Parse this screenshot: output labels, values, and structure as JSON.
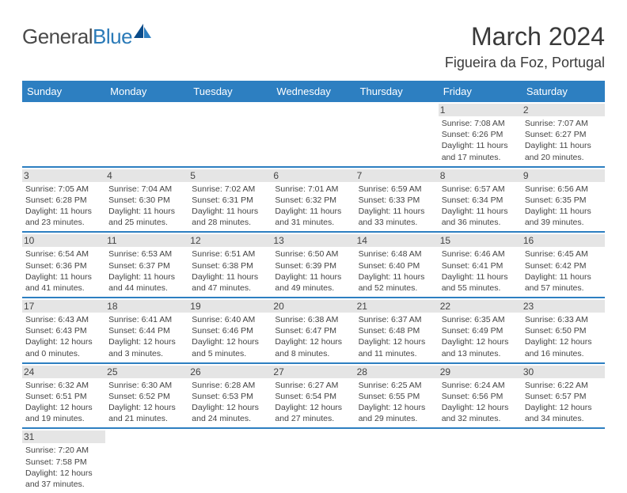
{
  "logo": {
    "general": "General",
    "blue": "Blue"
  },
  "title": "March 2024",
  "location": "Figueira da Foz, Portugal",
  "weekdays": [
    "Sunday",
    "Monday",
    "Tuesday",
    "Wednesday",
    "Thursday",
    "Friday",
    "Saturday"
  ],
  "colors": {
    "header_bg": "#2d7fc1",
    "daynum_bg": "#e5e5e5",
    "text": "#444444",
    "title": "#3a3a3a",
    "logo_gray": "#4a4a4a",
    "logo_blue": "#2a7ab8"
  },
  "weeks": [
    [
      {
        "n": "",
        "lines": []
      },
      {
        "n": "",
        "lines": []
      },
      {
        "n": "",
        "lines": []
      },
      {
        "n": "",
        "lines": []
      },
      {
        "n": "",
        "lines": []
      },
      {
        "n": "1",
        "lines": [
          "Sunrise: 7:08 AM",
          "Sunset: 6:26 PM",
          "Daylight: 11 hours",
          "and 17 minutes."
        ]
      },
      {
        "n": "2",
        "lines": [
          "Sunrise: 7:07 AM",
          "Sunset: 6:27 PM",
          "Daylight: 11 hours",
          "and 20 minutes."
        ]
      }
    ],
    [
      {
        "n": "3",
        "lines": [
          "Sunrise: 7:05 AM",
          "Sunset: 6:28 PM",
          "Daylight: 11 hours",
          "and 23 minutes."
        ]
      },
      {
        "n": "4",
        "lines": [
          "Sunrise: 7:04 AM",
          "Sunset: 6:30 PM",
          "Daylight: 11 hours",
          "and 25 minutes."
        ]
      },
      {
        "n": "5",
        "lines": [
          "Sunrise: 7:02 AM",
          "Sunset: 6:31 PM",
          "Daylight: 11 hours",
          "and 28 minutes."
        ]
      },
      {
        "n": "6",
        "lines": [
          "Sunrise: 7:01 AM",
          "Sunset: 6:32 PM",
          "Daylight: 11 hours",
          "and 31 minutes."
        ]
      },
      {
        "n": "7",
        "lines": [
          "Sunrise: 6:59 AM",
          "Sunset: 6:33 PM",
          "Daylight: 11 hours",
          "and 33 minutes."
        ]
      },
      {
        "n": "8",
        "lines": [
          "Sunrise: 6:57 AM",
          "Sunset: 6:34 PM",
          "Daylight: 11 hours",
          "and 36 minutes."
        ]
      },
      {
        "n": "9",
        "lines": [
          "Sunrise: 6:56 AM",
          "Sunset: 6:35 PM",
          "Daylight: 11 hours",
          "and 39 minutes."
        ]
      }
    ],
    [
      {
        "n": "10",
        "lines": [
          "Sunrise: 6:54 AM",
          "Sunset: 6:36 PM",
          "Daylight: 11 hours",
          "and 41 minutes."
        ]
      },
      {
        "n": "11",
        "lines": [
          "Sunrise: 6:53 AM",
          "Sunset: 6:37 PM",
          "Daylight: 11 hours",
          "and 44 minutes."
        ]
      },
      {
        "n": "12",
        "lines": [
          "Sunrise: 6:51 AM",
          "Sunset: 6:38 PM",
          "Daylight: 11 hours",
          "and 47 minutes."
        ]
      },
      {
        "n": "13",
        "lines": [
          "Sunrise: 6:50 AM",
          "Sunset: 6:39 PM",
          "Daylight: 11 hours",
          "and 49 minutes."
        ]
      },
      {
        "n": "14",
        "lines": [
          "Sunrise: 6:48 AM",
          "Sunset: 6:40 PM",
          "Daylight: 11 hours",
          "and 52 minutes."
        ]
      },
      {
        "n": "15",
        "lines": [
          "Sunrise: 6:46 AM",
          "Sunset: 6:41 PM",
          "Daylight: 11 hours",
          "and 55 minutes."
        ]
      },
      {
        "n": "16",
        "lines": [
          "Sunrise: 6:45 AM",
          "Sunset: 6:42 PM",
          "Daylight: 11 hours",
          "and 57 minutes."
        ]
      }
    ],
    [
      {
        "n": "17",
        "lines": [
          "Sunrise: 6:43 AM",
          "Sunset: 6:43 PM",
          "Daylight: 12 hours",
          "and 0 minutes."
        ]
      },
      {
        "n": "18",
        "lines": [
          "Sunrise: 6:41 AM",
          "Sunset: 6:44 PM",
          "Daylight: 12 hours",
          "and 3 minutes."
        ]
      },
      {
        "n": "19",
        "lines": [
          "Sunrise: 6:40 AM",
          "Sunset: 6:46 PM",
          "Daylight: 12 hours",
          "and 5 minutes."
        ]
      },
      {
        "n": "20",
        "lines": [
          "Sunrise: 6:38 AM",
          "Sunset: 6:47 PM",
          "Daylight: 12 hours",
          "and 8 minutes."
        ]
      },
      {
        "n": "21",
        "lines": [
          "Sunrise: 6:37 AM",
          "Sunset: 6:48 PM",
          "Daylight: 12 hours",
          "and 11 minutes."
        ]
      },
      {
        "n": "22",
        "lines": [
          "Sunrise: 6:35 AM",
          "Sunset: 6:49 PM",
          "Daylight: 12 hours",
          "and 13 minutes."
        ]
      },
      {
        "n": "23",
        "lines": [
          "Sunrise: 6:33 AM",
          "Sunset: 6:50 PM",
          "Daylight: 12 hours",
          "and 16 minutes."
        ]
      }
    ],
    [
      {
        "n": "24",
        "lines": [
          "Sunrise: 6:32 AM",
          "Sunset: 6:51 PM",
          "Daylight: 12 hours",
          "and 19 minutes."
        ]
      },
      {
        "n": "25",
        "lines": [
          "Sunrise: 6:30 AM",
          "Sunset: 6:52 PM",
          "Daylight: 12 hours",
          "and 21 minutes."
        ]
      },
      {
        "n": "26",
        "lines": [
          "Sunrise: 6:28 AM",
          "Sunset: 6:53 PM",
          "Daylight: 12 hours",
          "and 24 minutes."
        ]
      },
      {
        "n": "27",
        "lines": [
          "Sunrise: 6:27 AM",
          "Sunset: 6:54 PM",
          "Daylight: 12 hours",
          "and 27 minutes."
        ]
      },
      {
        "n": "28",
        "lines": [
          "Sunrise: 6:25 AM",
          "Sunset: 6:55 PM",
          "Daylight: 12 hours",
          "and 29 minutes."
        ]
      },
      {
        "n": "29",
        "lines": [
          "Sunrise: 6:24 AM",
          "Sunset: 6:56 PM",
          "Daylight: 12 hours",
          "and 32 minutes."
        ]
      },
      {
        "n": "30",
        "lines": [
          "Sunrise: 6:22 AM",
          "Sunset: 6:57 PM",
          "Daylight: 12 hours",
          "and 34 minutes."
        ]
      }
    ],
    [
      {
        "n": "31",
        "lines": [
          "Sunrise: 7:20 AM",
          "Sunset: 7:58 PM",
          "Daylight: 12 hours",
          "and 37 minutes."
        ]
      },
      {
        "n": "",
        "lines": []
      },
      {
        "n": "",
        "lines": []
      },
      {
        "n": "",
        "lines": []
      },
      {
        "n": "",
        "lines": []
      },
      {
        "n": "",
        "lines": []
      },
      {
        "n": "",
        "lines": []
      }
    ]
  ]
}
